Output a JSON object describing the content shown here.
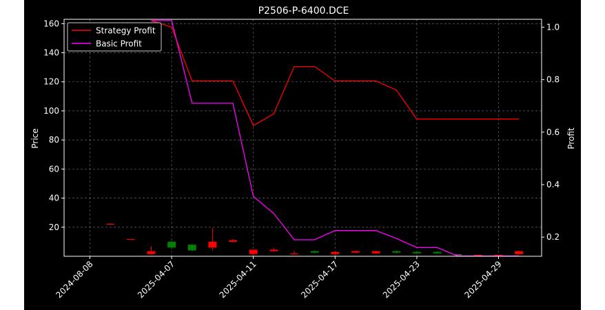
{
  "chart_data": {
    "type": "candlestick+line",
    "title": "P2506-P-6400.DCE",
    "xlabel": "",
    "ylabel_left": "Price",
    "ylabel_right": "Profit",
    "ylim_left": [
      0,
      163
    ],
    "ylim_right": [
      0.127,
      1.03
    ],
    "grid": true,
    "legend_position": "top-left",
    "x_tick_labels": [
      "2024-08-08",
      "2025-04-07",
      "2025-04-11",
      "2025-04-17",
      "2025-04-23",
      "2025-04-29"
    ],
    "x_tick_positions": [
      0,
      4,
      8,
      12,
      16,
      20
    ],
    "y_left_ticks": [
      20,
      40,
      60,
      80,
      100,
      120,
      140,
      160
    ],
    "y_right_ticks": [
      0.2,
      0.4,
      0.6,
      0.8,
      1.0
    ],
    "candles": [
      {
        "x": 1,
        "open": 22.3,
        "close": 22.3,
        "high": 22.3,
        "low": 22.3,
        "color": "red"
      },
      {
        "x": 2,
        "open": 11.8,
        "close": 11.8,
        "high": 11.8,
        "low": 11.8,
        "color": "red"
      },
      {
        "x": 3,
        "open": 3.5,
        "close": 1.5,
        "high": 7.0,
        "low": 1.0,
        "color": "red"
      },
      {
        "x": 4,
        "open": 6.0,
        "close": 10.0,
        "high": 10.5,
        "low": 5.0,
        "color": "green"
      },
      {
        "x": 5,
        "open": 4.0,
        "close": 8.0,
        "high": 8.5,
        "low": 3.5,
        "color": "green"
      },
      {
        "x": 6,
        "open": 10.0,
        "close": 6.0,
        "high": 19.5,
        "low": 4.0,
        "color": "red"
      },
      {
        "x": 7,
        "open": 11.0,
        "close": 10.0,
        "high": 12.0,
        "low": 9.5,
        "color": "red"
      },
      {
        "x": 8,
        "open": 4.5,
        "close": 1.5,
        "high": 4.5,
        "low": 1.0,
        "color": "red"
      },
      {
        "x": 9,
        "open": 4.5,
        "close": 3.5,
        "high": 6.0,
        "low": 3.0,
        "color": "red"
      },
      {
        "x": 10,
        "open": 2.0,
        "close": 1.5,
        "high": 3.5,
        "low": 1.0,
        "color": "red"
      },
      {
        "x": 11,
        "open": 2.5,
        "close": 3.5,
        "high": 4.0,
        "low": 2.0,
        "color": "green"
      },
      {
        "x": 12,
        "open": 3.0,
        "close": 1.5,
        "high": 3.5,
        "low": 1.0,
        "color": "red"
      },
      {
        "x": 13,
        "open": 3.5,
        "close": 2.5,
        "high": 4.0,
        "low": 2.0,
        "color": "red"
      },
      {
        "x": 14,
        "open": 3.5,
        "close": 2.0,
        "high": 3.8,
        "low": 1.5,
        "color": "red"
      },
      {
        "x": 15,
        "open": 2.5,
        "close": 3.5,
        "high": 4.0,
        "low": 2.0,
        "color": "green"
      },
      {
        "x": 16,
        "open": 2.0,
        "close": 3.0,
        "high": 3.5,
        "low": 1.5,
        "color": "green"
      },
      {
        "x": 17,
        "open": 2.0,
        "close": 3.0,
        "high": 3.5,
        "low": 1.5,
        "color": "green"
      },
      {
        "x": 18,
        "open": 1.3,
        "close": 1.3,
        "high": 1.3,
        "low": 1.3,
        "color": "gray"
      },
      {
        "x": 19,
        "open": 1.0,
        "close": 1.0,
        "high": 1.0,
        "low": 1.0,
        "color": "red"
      },
      {
        "x": 20,
        "open": 1.0,
        "close": 1.0,
        "high": 1.0,
        "low": 1.0,
        "color": "red"
      },
      {
        "x": 21,
        "open": 3.5,
        "close": 1.5,
        "high": 3.8,
        "low": 1.0,
        "color": "red"
      }
    ],
    "series": [
      {
        "name": "Strategy Profit",
        "color": "#ff0000",
        "axis": "right",
        "x": [
          3,
          4,
          5,
          6,
          7,
          8,
          9,
          10,
          11,
          12,
          13,
          14,
          15,
          16,
          17,
          18,
          19,
          20,
          21
        ],
        "values": [
          1.025,
          1.0,
          0.795,
          0.795,
          0.795,
          0.625,
          0.67,
          0.85,
          0.85,
          0.795,
          0.795,
          0.795,
          0.76,
          0.65,
          0.65,
          0.65,
          0.65,
          0.65,
          0.65
        ]
      },
      {
        "name": "Basic Profit",
        "color": "#ff00ff",
        "axis": "right",
        "x": [
          3,
          4,
          5,
          6,
          7,
          8,
          9,
          10,
          11,
          12,
          13,
          14,
          15,
          16,
          17,
          18,
          19,
          20,
          21
        ],
        "values": [
          1.025,
          1.025,
          0.71,
          0.71,
          0.71,
          0.355,
          0.29,
          0.19,
          0.19,
          0.225,
          0.225,
          0.225,
          0.195,
          0.16,
          0.16,
          0.128,
          0.128,
          0.128,
          0.128
        ]
      }
    ]
  }
}
